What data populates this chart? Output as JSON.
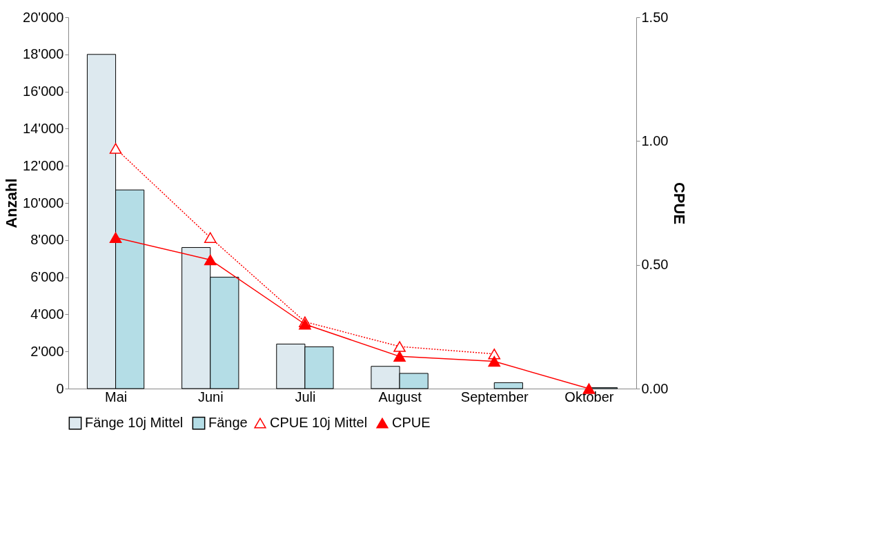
{
  "chart_data": {
    "type": "bar",
    "ylabel": "Anzahl",
    "y2label": "CPUE",
    "categories": [
      "Mai",
      "Juni",
      "Juli",
      "August",
      "September",
      "Oktober"
    ],
    "series": [
      {
        "name": "Fänge 10j Mittel",
        "color": "#dde9ef",
        "values": [
          18000,
          7600,
          2400,
          1200,
          null,
          null
        ]
      },
      {
        "name": "Fänge",
        "color": "#b4dde6",
        "values": [
          10700,
          6000,
          2250,
          820,
          320,
          50
        ]
      },
      {
        "name": "CPUE 10j Mittel",
        "type": "line",
        "axis": "y2",
        "color": "#ff0000",
        "line_style": "dotted",
        "values": [
          0.97,
          0.61,
          0.27,
          0.17,
          0.14,
          null
        ]
      },
      {
        "name": "CPUE",
        "type": "line",
        "axis": "y2",
        "color": "#ff0000",
        "line_style": "solid",
        "values": [
          0.61,
          0.52,
          0.26,
          0.13,
          0.11,
          0.0
        ]
      }
    ],
    "ylim": [
      0,
      20000
    ],
    "yticks": [
      0,
      {
        "value": 2000,
        "label": "2'000"
      },
      {
        "value": 4000,
        "label": "4'000"
      },
      {
        "value": 6000,
        "label": "6'000"
      },
      {
        "value": 8000,
        "label": "8'000"
      },
      {
        "value": 10000,
        "label": "10'000"
      },
      {
        "value": 12000,
        "label": "12'000"
      },
      {
        "value": 14000,
        "label": "14'000"
      },
      {
        "value": 16000,
        "label": "16'000"
      },
      {
        "value": 18000,
        "label": "18'000"
      },
      {
        "value": 20000,
        "label": "20'000"
      }
    ],
    "y2lim": [
      0,
      1.5
    ],
    "y2ticks": [
      {
        "value": 0,
        "label": "0.00"
      },
      {
        "value": 0.5,
        "label": "0.50"
      },
      {
        "value": 1.0,
        "label": "1.00"
      },
      {
        "value": 1.5,
        "label": "1.50"
      }
    ],
    "marker": "triangle",
    "legend": "bottom",
    "grid": false
  }
}
